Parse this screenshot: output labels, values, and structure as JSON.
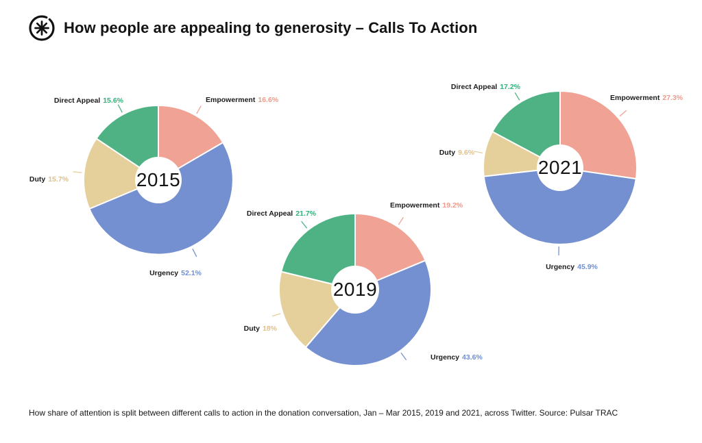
{
  "header": {
    "title": "How people are appealing to generosity – Calls To Action",
    "logo": "asterisk-in-circle"
  },
  "footer": {
    "caption": "How share of attention is split between different calls to action in the donation conversation, Jan – Mar 2015, 2019 and 2021, across Twitter. Source: Pulsar TRAC"
  },
  "colors": {
    "empowerment": {
      "slice": "#f0a295",
      "text": "#ee9a8b"
    },
    "urgency": {
      "slice": "#7590d0",
      "text": "#6e8fd4"
    },
    "duty": {
      "slice": "#e5cf9b",
      "text": "#dfc08a"
    },
    "direct_appeal": {
      "slice": "#4fb285",
      "text": "#2eb27a"
    }
  },
  "chart_data": [
    {
      "type": "pie",
      "variant": "donut",
      "center_label": "2015",
      "start_angle_deg": 0,
      "direction": "clockwise",
      "slices": [
        {
          "label": "Empowerment",
          "value": 16.6,
          "pct_text": "16.6%",
          "color_key": "empowerment"
        },
        {
          "label": "Urgency",
          "value": 52.1,
          "pct_text": "52.1%",
          "color_key": "urgency"
        },
        {
          "label": "Duty",
          "value": 15.7,
          "pct_text": "15.7%",
          "color_key": "duty"
        },
        {
          "label": "Direct Appeal",
          "value": 15.6,
          "pct_text": "15.6%",
          "color_key": "direct_appeal"
        }
      ]
    },
    {
      "type": "pie",
      "variant": "donut",
      "center_label": "2019",
      "start_angle_deg": 0,
      "direction": "clockwise",
      "slices": [
        {
          "label": "Empowerment",
          "value": 19.2,
          "pct_text": "19.2%",
          "color_key": "empowerment"
        },
        {
          "label": "Urgency",
          "value": 43.6,
          "pct_text": "43.6%",
          "color_key": "urgency"
        },
        {
          "label": "Duty",
          "value": 18,
          "pct_text": "18%",
          "color_key": "duty"
        },
        {
          "label": "Direct Appeal",
          "value": 21.7,
          "pct_text": "21.7%",
          "color_key": "direct_appeal"
        }
      ]
    },
    {
      "type": "pie",
      "variant": "donut",
      "center_label": "2021",
      "start_angle_deg": 0,
      "direction": "clockwise",
      "slices": [
        {
          "label": "Empowerment",
          "value": 27.3,
          "pct_text": "27.3%",
          "color_key": "empowerment"
        },
        {
          "label": "Urgency",
          "value": 45.9,
          "pct_text": "45.9%",
          "color_key": "urgency"
        },
        {
          "label": "Duty",
          "value": 9.6,
          "pct_text": "9.6%",
          "color_key": "duty"
        },
        {
          "label": "Direct Appeal",
          "value": 17.2,
          "pct_text": "17.2%",
          "color_key": "direct_appeal"
        }
      ]
    }
  ]
}
